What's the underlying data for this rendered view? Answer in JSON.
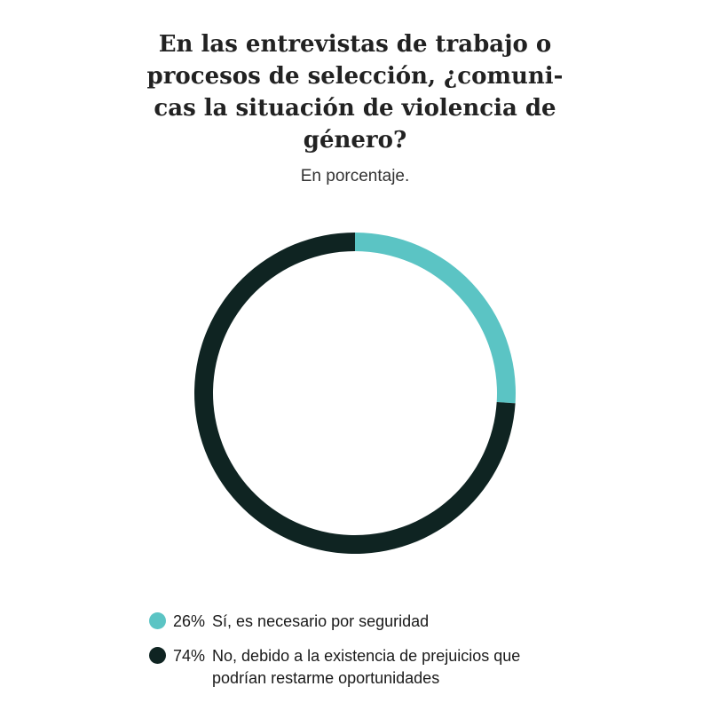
{
  "chart_data": {
    "type": "pie",
    "title": "En las entrevistas de trabajo o procesos de selección, ¿comuni-cas la situación de violencia de género?",
    "subtitle": "En porcentaje.",
    "slices": [
      {
        "label": "Sí, es necesario por seguridad",
        "value": 26,
        "value_label": "26%",
        "color": "#5bc4c4"
      },
      {
        "label": "No, debido a la existencia de prejuicios que podrían restarme oportunidades",
        "value": 74,
        "value_label": "74%",
        "color": "#0f2422"
      }
    ],
    "style": "donut",
    "legend_position": "bottom"
  }
}
